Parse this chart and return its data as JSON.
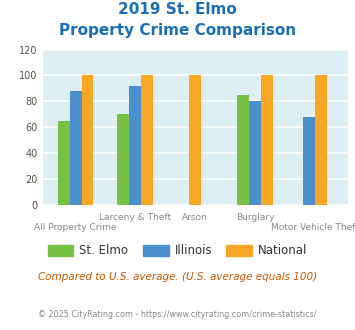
{
  "title_line1": "2019 St. Elmo",
  "title_line2": "Property Crime Comparison",
  "title_color": "#1a6fba",
  "categories": [
    "All Property Crime",
    "Larceny & Theft",
    "Arson",
    "Burglary",
    "Motor Vehicle Theft"
  ],
  "x_label_upper": [
    "",
    "Larceny & Theft",
    "Arson",
    "Burglary",
    ""
  ],
  "x_label_lower": [
    "All Property Crime",
    "",
    "",
    "",
    "Motor Vehicle Theft"
  ],
  "st_elmo": [
    65,
    70,
    null,
    85,
    null
  ],
  "illinois": [
    88,
    92,
    null,
    80,
    68
  ],
  "national": [
    100,
    100,
    100,
    100,
    100
  ],
  "st_elmo_color": "#76c043",
  "illinois_color": "#4d8fcc",
  "national_color": "#f5a623",
  "ylim": [
    0,
    120
  ],
  "yticks": [
    0,
    20,
    40,
    60,
    80,
    100,
    120
  ],
  "plot_bg_color": "#ddeef5",
  "fig_bg_color": "#ffffff",
  "grid_color": "#ffffff",
  "footnote1": "Compared to U.S. average. (U.S. average equals 100)",
  "footnote2": "© 2025 CityRating.com - https://www.cityrating.com/crime-statistics/",
  "footnote1_color": "#cc5500",
  "footnote2_color": "#888888",
  "legend_labels": [
    "St. Elmo",
    "Illinois",
    "National"
  ],
  "bar_width": 0.2
}
